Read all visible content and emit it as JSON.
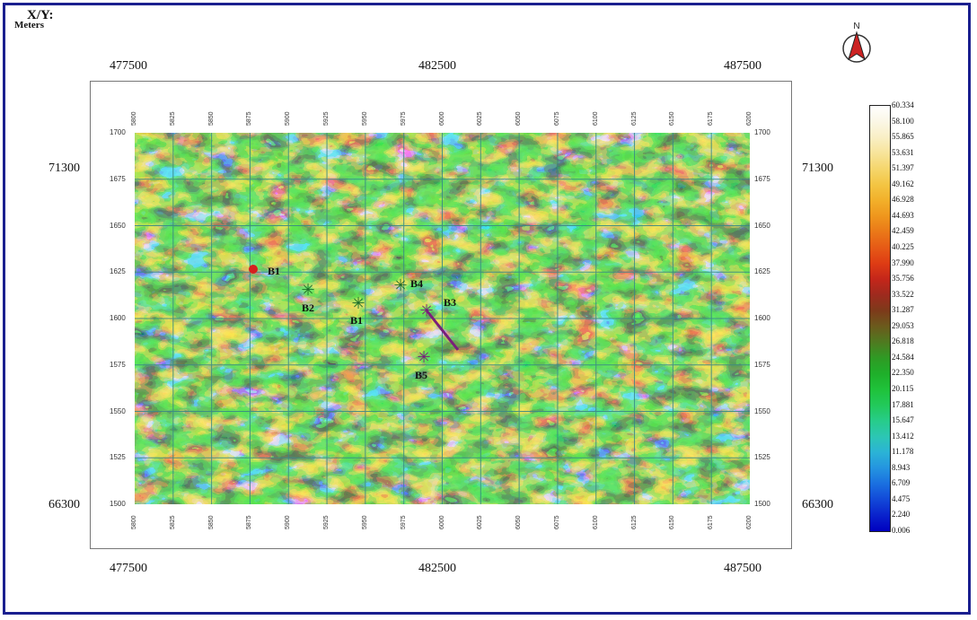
{
  "header": {
    "xy_label": "X/Y:",
    "units_label": "Meters"
  },
  "axes": {
    "top_x": [
      "477500",
      "482500",
      "487500"
    ],
    "bottom_x": [
      "477500",
      "482500",
      "487500"
    ],
    "left_y": [
      "71300",
      "66300"
    ],
    "right_y": [
      "71300",
      "66300"
    ],
    "inner_top": [
      "5800",
      "5825",
      "5850",
      "5875",
      "5900",
      "5925",
      "5950",
      "5975",
      "6000",
      "6025",
      "6050",
      "6075",
      "6100",
      "6125",
      "6150",
      "6175",
      "6200"
    ],
    "inner_bottom": [
      "5800",
      "5825",
      "5850",
      "5875",
      "5900",
      "5925",
      "5950",
      "5975",
      "6000",
      "6025",
      "6050",
      "6075",
      "6100",
      "6125",
      "6150",
      "6175",
      "6200"
    ],
    "inner_left": [
      "1700",
      "1675",
      "1650",
      "1625",
      "1600",
      "1575",
      "1550",
      "1525",
      "1500"
    ],
    "inner_right": [
      "1700",
      "1675",
      "1650",
      "1625",
      "1600",
      "1575",
      "1550",
      "1525",
      "1500"
    ]
  },
  "north": {
    "label": "N"
  },
  "wells": [
    {
      "name": "B1",
      "symbol": "circle",
      "color": "#d62020"
    },
    {
      "name": "B2",
      "symbol": "star",
      "color": "#1f6b2a"
    },
    {
      "name": "B1",
      "symbol": "star",
      "color": "#1f6b2a"
    },
    {
      "name": "B4",
      "symbol": "star",
      "color": "#1f6b2a"
    },
    {
      "name": "B3",
      "symbol": "star",
      "color": "#7a1f7a"
    },
    {
      "name": "B5",
      "symbol": "star",
      "color": "#7a1f7a"
    }
  ],
  "color_scale": {
    "values": [
      "60.334",
      "58.100",
      "55.865",
      "53.631",
      "51.397",
      "49.162",
      "46.928",
      "44.693",
      "42.459",
      "40.225",
      "37.990",
      "35.756",
      "33.522",
      "31.287",
      "29.053",
      "26.818",
      "24.584",
      "22.350",
      "20.115",
      "17.881",
      "15.647",
      "13.412",
      "11.178",
      "8.943",
      "6.709",
      "4.475",
      "2.240",
      "0.006"
    ],
    "colors": [
      "#ffffff",
      "#fbf7e6",
      "#f9efc5",
      "#f7e49a",
      "#f5d66c",
      "#f3c543",
      "#f2b02a",
      "#ef961d",
      "#ea7818",
      "#e65a16",
      "#de3c14",
      "#c4261a",
      "#9e2a1e",
      "#7d3a1a",
      "#6b5a1c",
      "#4f7a20",
      "#2f9a24",
      "#1faf2a",
      "#1fc23a",
      "#22c95a",
      "#27cc8a",
      "#2cc6b4",
      "#2bb3d6",
      "#2494e0",
      "#1a6fe0",
      "#1248d8",
      "#0a22cc",
      "#0000c0"
    ]
  },
  "colors": {
    "frame": "#1a1f8f",
    "grid": "#3a8a86"
  }
}
